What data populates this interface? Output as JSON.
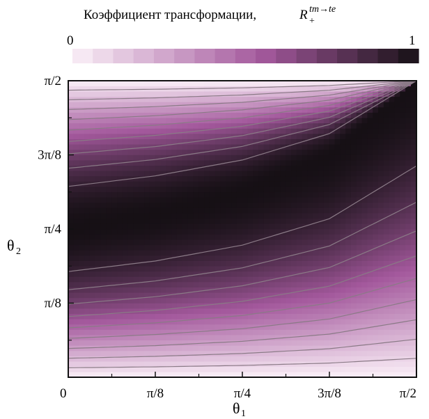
{
  "chart_data": {
    "type": "heatmap",
    "title": "Коэффициент трансформации,",
    "title_symbol": {
      "base": "R",
      "superscript": "tm→te",
      "subscript": "+"
    },
    "colorbar": {
      "min_label": "0",
      "max_label": "1",
      "range": [
        0,
        1
      ],
      "steps": 17,
      "color_low": "#fbf0f8",
      "color_mid": "#a3589c",
      "color_high": "#161015"
    },
    "xlabel": {
      "base": "θ",
      "subscript": "1"
    },
    "ylabel": {
      "base": "θ",
      "subscript": "2"
    },
    "xlim": [
      0,
      1.5708
    ],
    "ylim": [
      0,
      1.5708
    ],
    "x_ticks": [
      {
        "value": 0,
        "label": "0"
      },
      {
        "value": 0.3927,
        "label": "π/8"
      },
      {
        "value": 0.7854,
        "label": "π/4"
      },
      {
        "value": 1.1781,
        "label": "3π/8"
      },
      {
        "value": 1.5708,
        "label": "π/2"
      }
    ],
    "y_ticks": [
      {
        "value": 0.3927,
        "label": "π/8"
      },
      {
        "value": 0.7854,
        "label": "π/4"
      },
      {
        "value": 1.1781,
        "label": "3π/8"
      },
      {
        "value": 1.5708,
        "label": "π/2"
      }
    ],
    "contour_levels": [
      0.1,
      0.2,
      0.3,
      0.4,
      0.5,
      0.6,
      0.7,
      0.8,
      0.9
    ],
    "contour_color": "#8a7a86",
    "peak_ridge": [
      {
        "x": 0,
        "y": 0.7854
      },
      {
        "x": 0.3927,
        "y": 0.8639
      },
      {
        "x": 0.7854,
        "y": 0.9817
      },
      {
        "x": 1.1781,
        "y": 1.1781
      },
      {
        "x": 1.5708,
        "y": 1.5708
      }
    ]
  }
}
